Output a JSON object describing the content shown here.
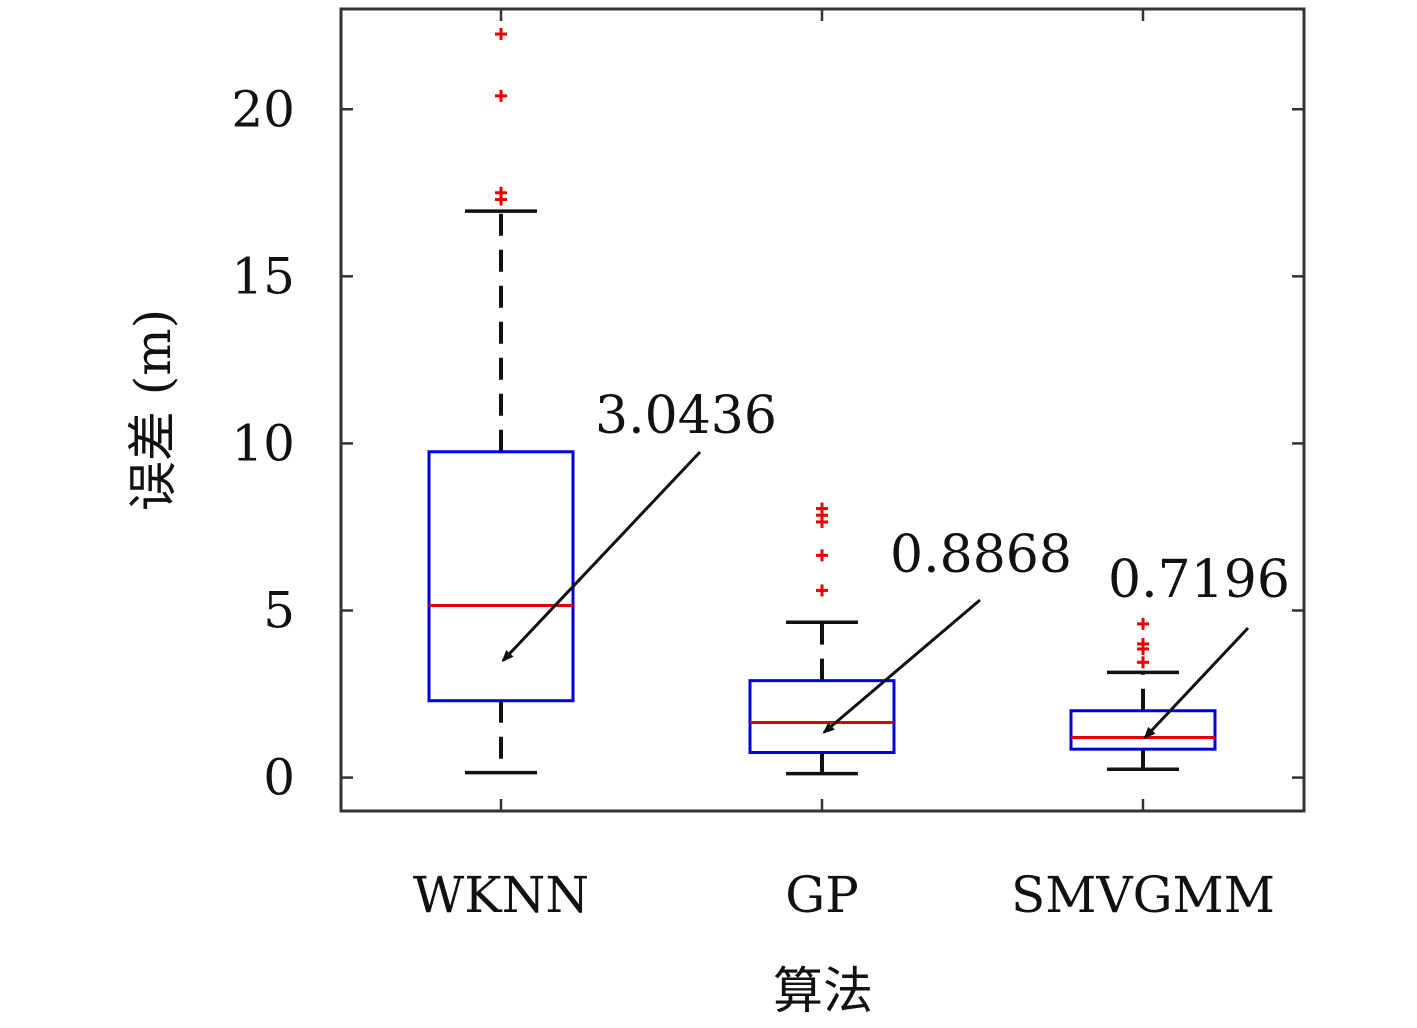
{
  "chart_data": {
    "type": "box",
    "xlabel": "算法",
    "ylabel": "误差 (m)",
    "ylim": [
      -1,
      23
    ],
    "yticks": [
      0,
      5,
      10,
      15,
      20
    ],
    "grid": false,
    "colors": {
      "box": "#0000dd",
      "median": "#dd0000",
      "whisker": "#111111",
      "outlier": "#ee0000",
      "frame": "#333333"
    },
    "categories": [
      "WKNN",
      "GP",
      "SMVGMM"
    ],
    "boxes": [
      {
        "name": "WKNN",
        "whisker_low": 0.15,
        "q1": 2.3,
        "median": 5.15,
        "q3": 9.75,
        "whisker_high": 16.95,
        "outliers": [
          17.3,
          17.5,
          20.4,
          22.25
        ]
      },
      {
        "name": "GP",
        "whisker_low": 0.12,
        "q1": 0.75,
        "median": 1.65,
        "q3": 2.9,
        "whisker_high": 4.65,
        "outliers": [
          5.6,
          6.65,
          7.65,
          7.85,
          8.05
        ]
      },
      {
        "name": "SMVGMM",
        "whisker_low": 0.25,
        "q1": 0.85,
        "median": 1.2,
        "q3": 2.0,
        "whisker_high": 3.15,
        "outliers": [
          3.45,
          3.85,
          4.0,
          4.6
        ]
      }
    ],
    "annotations": [
      {
        "text": "3.0436",
        "target_value": 3.5,
        "category": "WKNN"
      },
      {
        "text": "0.8868",
        "target_value": 1.35,
        "category": "GP"
      },
      {
        "text": "0.7196",
        "target_value": 1.2,
        "category": "SMVGMM"
      }
    ]
  }
}
